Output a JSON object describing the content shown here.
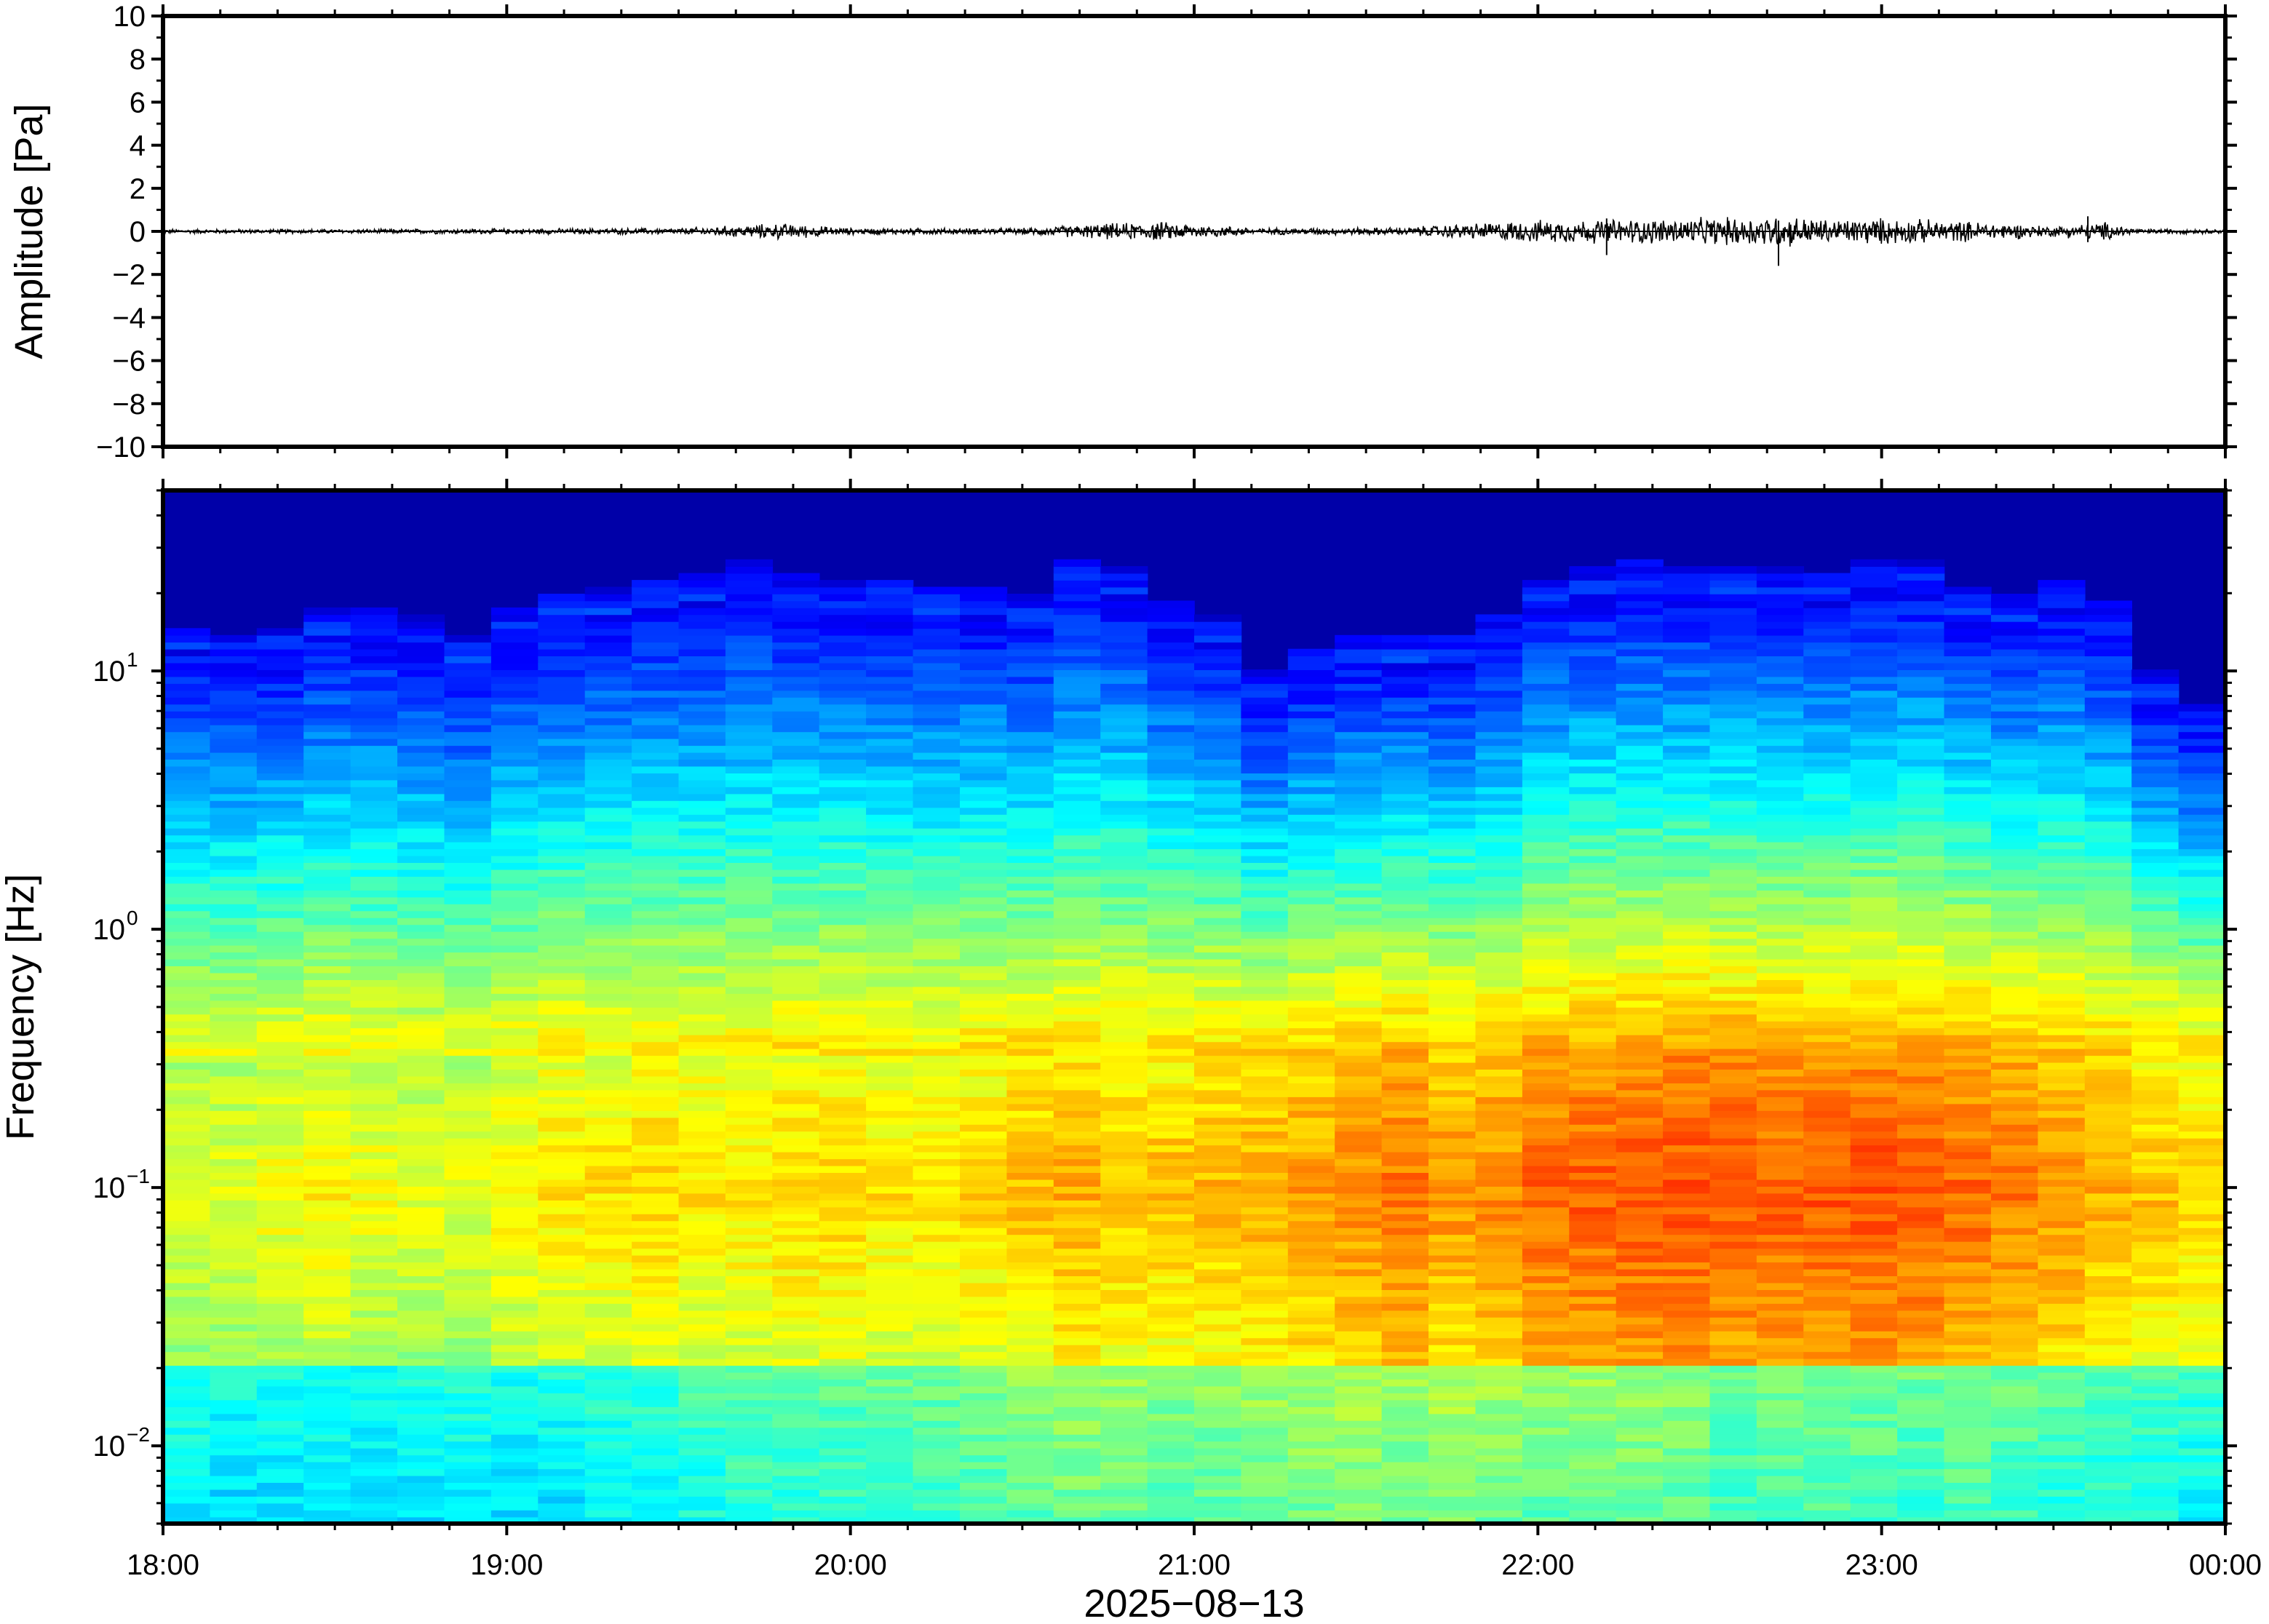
{
  "chart_data": [
    {
      "type": "line",
      "ylabel": "Amplitude [Pa]",
      "ylim": [
        -10,
        10
      ],
      "yticks": [
        {
          "value": 10,
          "label": "10"
        },
        {
          "value": 8,
          "label": "8"
        },
        {
          "value": 6,
          "label": "6"
        },
        {
          "value": 4,
          "label": "4"
        },
        {
          "value": 2,
          "label": "2"
        },
        {
          "value": 0,
          "label": "0"
        },
        {
          "value": -2,
          "label": "−2"
        },
        {
          "value": -4,
          "label": "−4"
        },
        {
          "value": -6,
          "label": "−6"
        },
        {
          "value": -8,
          "label": "−8"
        },
        {
          "value": -10,
          "label": "−10"
        }
      ],
      "xlim": [
        "18:00",
        "00:00"
      ],
      "envelope": {
        "t_hours": [
          0,
          0.5,
          1.0,
          1.5,
          1.8,
          2.0,
          2.5,
          2.75,
          2.9,
          3.2,
          3.6,
          3.95,
          4.2,
          4.5,
          4.7,
          4.85,
          5.0,
          5.3,
          5.5,
          5.65,
          5.75,
          6.0
        ],
        "amplitude_pa": [
          0.08,
          0.08,
          0.1,
          0.12,
          0.3,
          0.12,
          0.12,
          0.3,
          0.35,
          0.12,
          0.15,
          0.4,
          0.45,
          0.5,
          0.6,
          0.45,
          0.5,
          0.35,
          0.2,
          0.35,
          0.1,
          0.08
        ]
      },
      "spikes": [
        {
          "t_hours": 4.7,
          "min_pa": -1.6,
          "max_pa": 0.5
        },
        {
          "t_hours": 4.2,
          "min_pa": -1.1,
          "max_pa": 0.6
        },
        {
          "t_hours": 5.6,
          "min_pa": -0.5,
          "max_pa": 0.7
        }
      ]
    },
    {
      "type": "heatmap",
      "ylabel": "Frequency [Hz]",
      "xlabel": "2025−08−13",
      "yscale": "log",
      "ylim_hz": [
        0.005,
        50
      ],
      "yticks": [
        {
          "value": 10,
          "base": "10",
          "exp": "1"
        },
        {
          "value": 1,
          "base": "10",
          "exp": "0"
        },
        {
          "value": 0.1,
          "base": "10",
          "exp": "−1"
        },
        {
          "value": 0.01,
          "base": "10",
          "exp": "−2"
        }
      ],
      "xticks": [
        "18:00",
        "19:00",
        "20:00",
        "21:00",
        "22:00",
        "23:00",
        "00:00"
      ],
      "colormap": "jet",
      "top_cutoff_hz": [
        12,
        11,
        12,
        14,
        14,
        13,
        11,
        14,
        16,
        17,
        18,
        19,
        21,
        19,
        18,
        18,
        17,
        17,
        16,
        21,
        20,
        15,
        13,
        8,
        10,
        11,
        11,
        11,
        13,
        18,
        20,
        21,
        20,
        20,
        20,
        19,
        21,
        21,
        17,
        16,
        18,
        15,
        8,
        6
      ],
      "ridge_intensity": [
        0.35,
        0.35,
        0.4,
        0.45,
        0.4,
        0.35,
        0.35,
        0.45,
        0.5,
        0.5,
        0.55,
        0.5,
        0.5,
        0.55,
        0.55,
        0.5,
        0.5,
        0.55,
        0.6,
        0.65,
        0.6,
        0.6,
        0.62,
        0.65,
        0.7,
        0.75,
        0.8,
        0.72,
        0.75,
        0.85,
        0.88,
        0.9,
        0.92,
        0.9,
        0.88,
        0.9,
        0.92,
        0.9,
        0.85,
        0.8,
        0.72,
        0.65,
        0.6,
        0.55
      ],
      "low_band_intensity": [
        0.15,
        0.1,
        0.1,
        0.12,
        0.1,
        0.12,
        0.15,
        0.1,
        0.12,
        0.18,
        0.2,
        0.25,
        0.3,
        0.3,
        0.32,
        0.35,
        0.35,
        0.38,
        0.45,
        0.5,
        0.48,
        0.42,
        0.45,
        0.5,
        0.52,
        0.55,
        0.5,
        0.55,
        0.5,
        0.45,
        0.48,
        0.5,
        0.45,
        0.35,
        0.4,
        0.42,
        0.38,
        0.35,
        0.4,
        0.35,
        0.3,
        0.28,
        0.25,
        0.2
      ]
    }
  ]
}
